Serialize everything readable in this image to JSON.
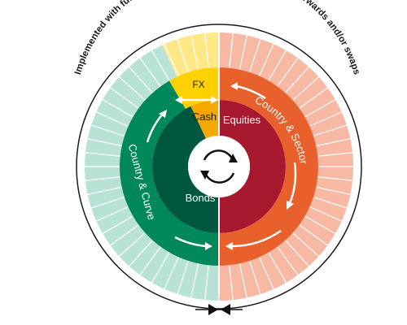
{
  "outer_caption": "Implemented with funds, ETFs, physical securities, futures, forwards and/or swaps",
  "inner_segments": {
    "cash": "Cash",
    "equities": "Equities",
    "bonds": "Bonds"
  },
  "middle_segments": {
    "fx": "FX",
    "country_sector": "Country & Sector",
    "country_curve": "Country & Curve"
  },
  "colors": {
    "cash": "#F5A800",
    "equities": "#A6192E",
    "bonds": "#00573F",
    "fx": "#FFD100",
    "country_sector": "#E8612C",
    "country_curve": "#00875A",
    "outer_left": "#B9E2D6",
    "outer_right": "#F7B8A4",
    "outer_top": "#FFE885",
    "outline": "#1a1a1a"
  },
  "icons": {
    "center": "cycle-arrows-icon",
    "bottom": "double-arrow-icon"
  }
}
